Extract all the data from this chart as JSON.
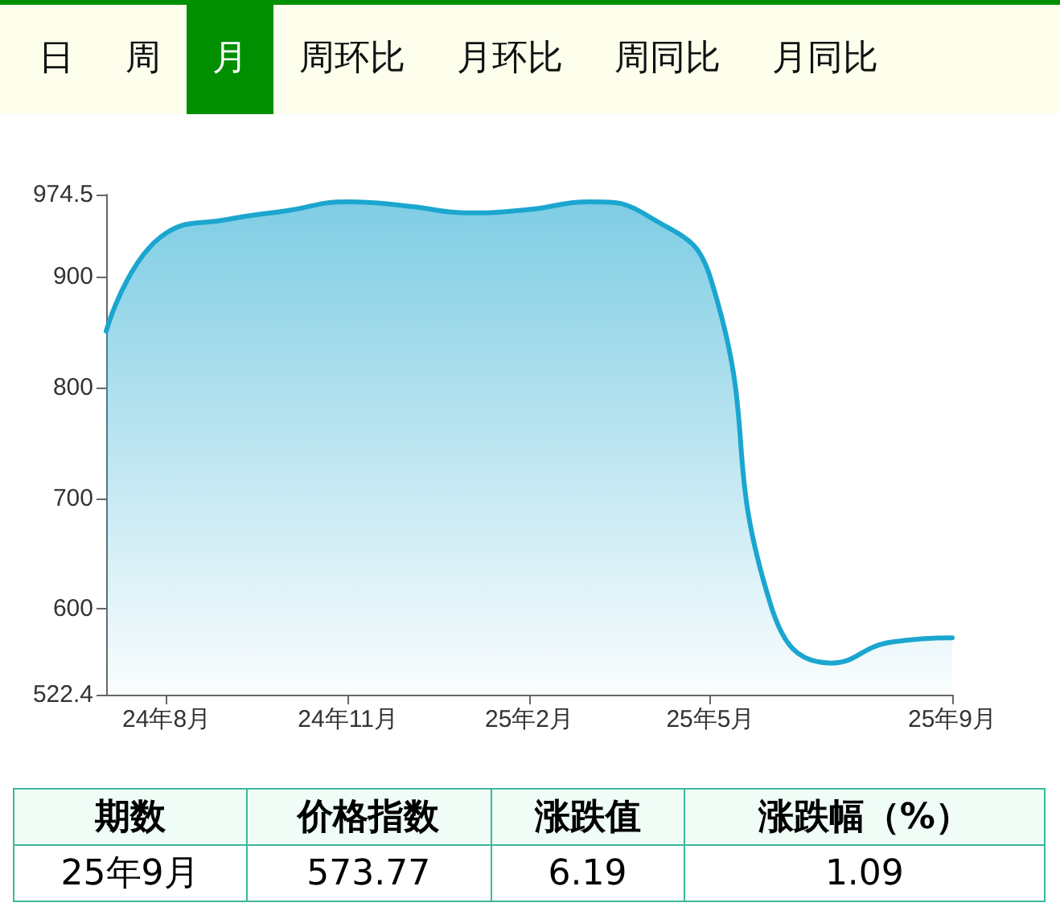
{
  "chart_data": [
    {
      "type": "other",
      "annotations": [
        "日",
        "周",
        "月",
        "周环比",
        "月环比",
        "周同比",
        "月同比"
      ],
      "colors": [
        "#fdfeec",
        "#fdfeec",
        "#008f00",
        "#fdfeec",
        "#fdfeec",
        "#fdfeec",
        "#fdfeec"
      ]
    },
    {
      "type": "area",
      "categories": [
        null,
        "24年8月",
        null,
        null,
        "24年11月",
        null,
        null,
        "25年2月",
        null,
        null,
        "25年5月",
        null,
        null,
        null,
        "25年9月"
      ],
      "series": [
        {
          "color": "#1ba6cf",
          "values": [
            851,
            940,
            952,
            960,
            968,
            964,
            958,
            961,
            968,
            954,
            899,
            603,
            551,
            570,
            573.77
          ]
        }
      ],
      "ylim": [
        522.4,
        974.5
      ],
      "yticks": [
        522.4,
        600,
        700,
        800,
        900,
        974.5
      ],
      "grid": false,
      "marker": "none",
      "line_style": "solid"
    },
    {
      "type": "other",
      "annotations": [
        "期数",
        "价格指数",
        "涨跌值",
        "涨跌幅（%）",
        "25年9月",
        "573.77",
        "6.19",
        "1.09"
      ]
    }
  ]
}
